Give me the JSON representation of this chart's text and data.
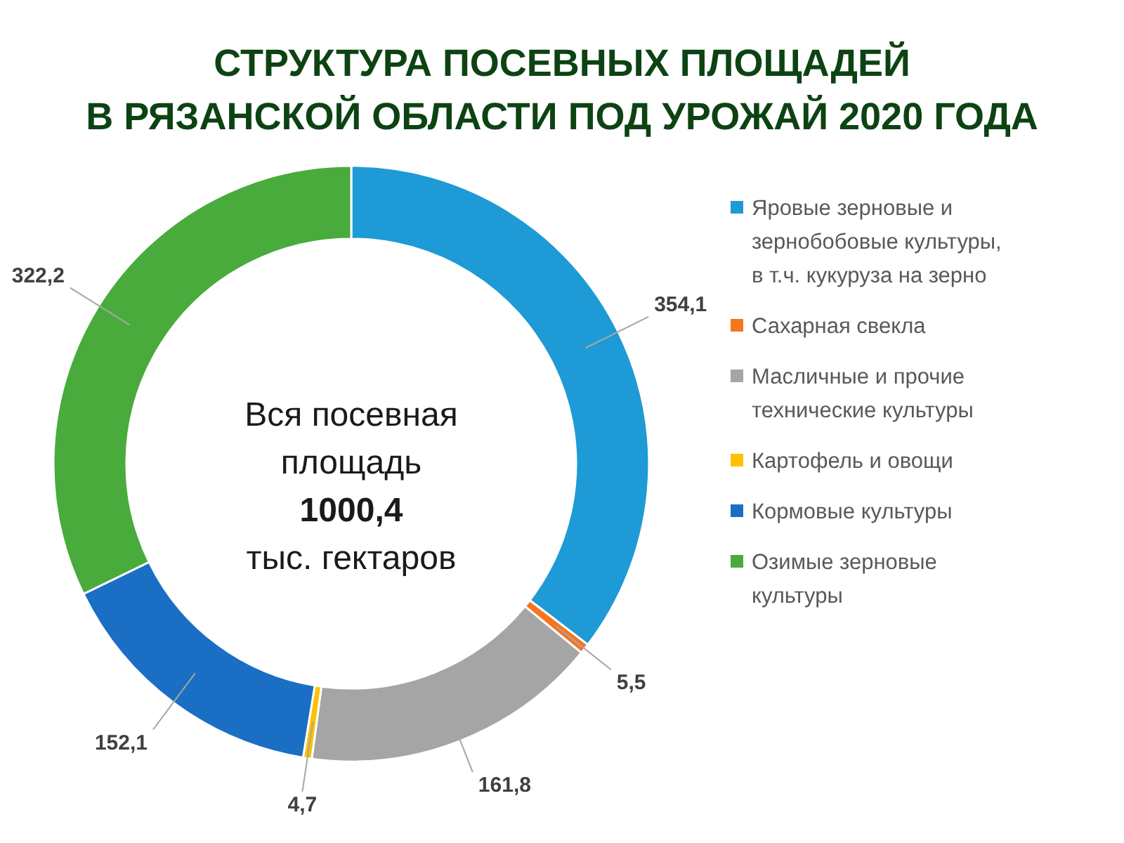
{
  "chart_data": {
    "type": "donut",
    "title": "СТРУКТУРА ПОСЕВНЫХ ПЛОЩАДЕЙ\nВ РЯЗАНСКОЙ ОБЛАСТИ ПОД УРОЖАЙ 2020 ГОДА",
    "categories": [
      "Яровые зерновые и зернобобовые культуры, в т.ч. кукуруза на зерно",
      "Сахарная свекла",
      "Масличные и прочие технические культуры",
      "Картофель и овощи",
      "Кормовые культуры",
      "Озимые зерновые культуры"
    ],
    "values": [
      354.1,
      5.5,
      161.8,
      4.7,
      152.1,
      322.2
    ],
    "value_labels": [
      "354,1",
      "5,5",
      "161,8",
      "4,7",
      "152,1",
      "322,2"
    ],
    "colors": [
      "#1e9ad6",
      "#f5761f",
      "#a5a5a5",
      "#ffc000",
      "#1a6fc4",
      "#49ab3c"
    ],
    "legend": "right",
    "annotations": [
      "Вся посевная площадь",
      "1000,4",
      "тыс. гектаров"
    ]
  }
}
